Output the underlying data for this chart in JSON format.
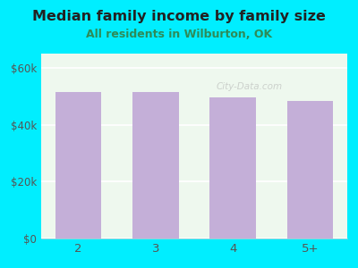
{
  "title": "Median family income by family size",
  "subtitle": "All residents in Wilburton, OK",
  "categories": [
    "2",
    "3",
    "4",
    "5+"
  ],
  "values": [
    51500,
    51500,
    49500,
    48500
  ],
  "bar_color": "#c4afd8",
  "background_outer": "#00eeff",
  "background_inner": "#eef8ee",
  "title_color": "#222222",
  "subtitle_color": "#2e8b57",
  "tick_label_color": "#555555",
  "ylim": [
    0,
    65000
  ],
  "yticks": [
    0,
    20000,
    40000,
    60000
  ],
  "ytick_labels": [
    "$0",
    "$20k",
    "$40k",
    "$60k"
  ],
  "title_fontsize": 11.5,
  "subtitle_fontsize": 9,
  "watermark": "City-Data.com"
}
